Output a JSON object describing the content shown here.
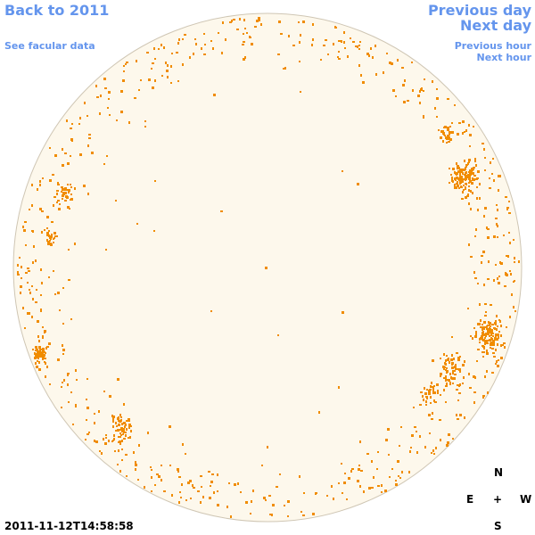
{
  "nav": {
    "back": "Back to 2011",
    "facular": "See facular data",
    "previous_day": "Previous day",
    "next_day": "Next day",
    "previous_hour": "Previous hour",
    "next_hour": "Next hour"
  },
  "compass": {
    "north": "N",
    "east": "E",
    "center": "+",
    "west": "W",
    "south": "S"
  },
  "timestamp": "2011-11-12T14:58:58"
}
